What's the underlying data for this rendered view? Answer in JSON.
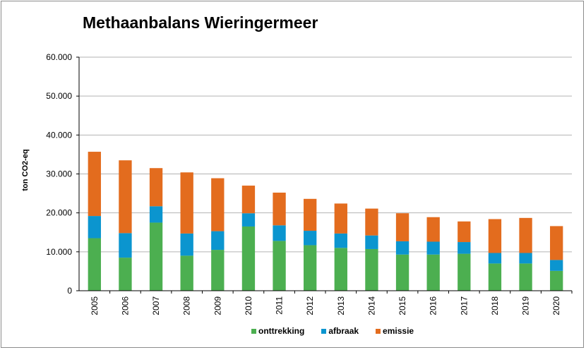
{
  "chart_data": {
    "type": "bar",
    "stacked": true,
    "title": "Methaanbalans Wieringermeer",
    "xlabel": "",
    "ylabel": "ton CO2-eq",
    "ylim": [
      0,
      60000
    ],
    "y_ticks": [
      "0",
      "10.000",
      "20.000",
      "30.000",
      "40.000",
      "50.000",
      "60.000"
    ],
    "grid": true,
    "legend_position": "bottom",
    "categories": [
      "2005",
      "2006",
      "2007",
      "2008",
      "2009",
      "2010",
      "2011",
      "2012",
      "2013",
      "2014",
      "2015",
      "2016",
      "2017",
      "2018",
      "2019",
      "2020"
    ],
    "series": [
      {
        "name": "onttrekking",
        "color": "#4caf50",
        "values": [
          13500,
          8500,
          17500,
          9000,
          10500,
          16500,
          12800,
          11700,
          11000,
          10700,
          9300,
          9300,
          9500,
          7000,
          7000,
          5100
        ]
      },
      {
        "name": "afbraak",
        "color": "#0b95cf",
        "values": [
          5700,
          6300,
          4200,
          5700,
          4800,
          3400,
          4000,
          3700,
          3700,
          3500,
          3400,
          3300,
          3000,
          2700,
          2700,
          2800
        ]
      },
      {
        "name": "emissie",
        "color": "#e36c1e",
        "values": [
          16500,
          18700,
          9800,
          15700,
          13600,
          7100,
          8400,
          8200,
          7700,
          6900,
          7200,
          6300,
          5300,
          8700,
          9000,
          8700
        ]
      }
    ]
  }
}
